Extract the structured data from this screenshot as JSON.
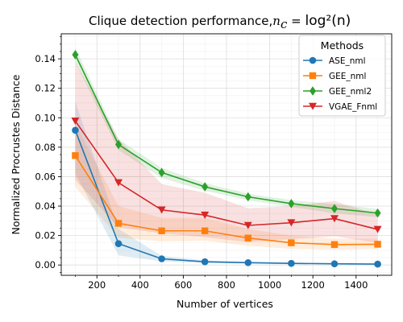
{
  "chart_data": {
    "type": "line",
    "title": "Clique detection performance,",
    "title_math_var": "n",
    "title_math_sub": "c",
    "title_math_eq": " = ",
    "title_math_expr": "log²(n)",
    "xlabel": "Number of vertices",
    "ylabel": "Normalized Procrustes Distance",
    "xlim": [
      35,
      1565
    ],
    "ylim": [
      -0.007,
      0.157
    ],
    "xticks": [
      200,
      400,
      600,
      800,
      1000,
      1200,
      1400
    ],
    "xtick_labels": [
      "200",
      "400",
      "600",
      "800",
      "1000",
      "1200",
      "1400"
    ],
    "yticks": [
      0.0,
      0.02,
      0.04,
      0.06,
      0.08,
      0.1,
      0.12,
      0.14
    ],
    "ytick_labels": [
      "0.00",
      "0.02",
      "0.04",
      "0.06",
      "0.08",
      "0.10",
      "0.12",
      "0.14"
    ],
    "grid": true,
    "legend_title": "Methods",
    "legend_position": "top-right",
    "x": [
      100,
      300,
      500,
      700,
      900,
      1100,
      1300,
      1500
    ],
    "series": [
      {
        "name": "ASE_nml",
        "color": "#1f77b4",
        "marker": "circle",
        "values": [
          0.0915,
          0.0145,
          0.0042,
          0.0022,
          0.0016,
          0.0011,
          0.0008,
          0.0006
        ],
        "lower": [
          0.062,
          0.0065,
          0.0025,
          0.0014,
          0.001,
          0.0007,
          0.0005,
          0.0004
        ],
        "upper": [
          0.111,
          0.0245,
          0.0062,
          0.0031,
          0.0022,
          0.0016,
          0.0012,
          0.0009
        ]
      },
      {
        "name": "GEE_nml",
        "color": "#ff7f0e",
        "marker": "square",
        "values": [
          0.0743,
          0.0283,
          0.0232,
          0.0232,
          0.0183,
          0.0151,
          0.0139,
          0.0141
        ],
        "lower": [
          0.053,
          0.0185,
          0.016,
          0.0165,
          0.013,
          0.011,
          0.0105,
          0.011
        ],
        "upper": [
          0.096,
          0.04,
          0.032,
          0.032,
          0.0245,
          0.02,
          0.018,
          0.0178
        ]
      },
      {
        "name": "GEE_nml2",
        "color": "#2ca02c",
        "marker": "diamond",
        "values": [
          0.1428,
          0.0818,
          0.0628,
          0.0531,
          0.0463,
          0.0417,
          0.0383,
          0.0353
        ],
        "lower": [
          0.138,
          0.078,
          0.059,
          0.0505,
          0.044,
          0.0395,
          0.035,
          0.0325
        ],
        "upper": [
          0.1475,
          0.0855,
          0.066,
          0.0555,
          0.0485,
          0.044,
          0.0415,
          0.038
        ]
      },
      {
        "name": "VGAE_Fnml",
        "color": "#d62728",
        "marker": "triangle-down",
        "values": [
          0.0978,
          0.0559,
          0.0374,
          0.0339,
          0.0269,
          0.0287,
          0.0315,
          0.0242
        ],
        "lower": [
          0.058,
          0.0255,
          0.0215,
          0.019,
          0.0155,
          0.0175,
          0.0195,
          0.015
        ],
        "upper": [
          0.138,
          0.0855,
          0.055,
          0.049,
          0.0385,
          0.04,
          0.0435,
          0.034
        ]
      }
    ]
  }
}
